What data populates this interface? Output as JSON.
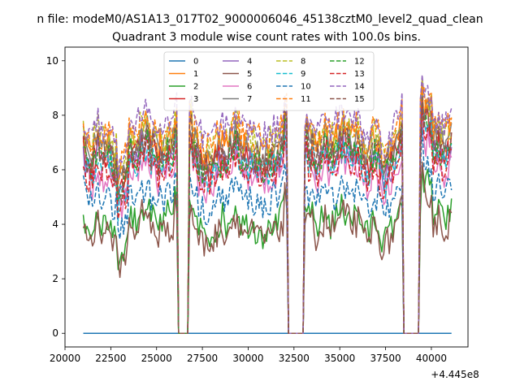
{
  "chart_data": {
    "type": "line",
    "suptitle": "n file: modeM0/AS1A13_017T02_9000006046_45138cztM0_level2_quad_clean",
    "title": "Quadrant 3 module wise count rates with 100.0s bins.",
    "xlabel": "",
    "ylabel": "",
    "x_offset_label": "+4.445e8",
    "xlim": [
      20000,
      42000
    ],
    "ylim": [
      -0.5,
      10.5
    ],
    "x_ticks": [
      20000,
      22500,
      25000,
      27500,
      30000,
      32500,
      35000,
      37500,
      40000
    ],
    "x_tick_labels": [
      "20000",
      "22500",
      "25000",
      "27500",
      "30000",
      "32500",
      "35000",
      "37500",
      "40000"
    ],
    "y_ticks": [
      0,
      2,
      4,
      6,
      8,
      10
    ],
    "y_tick_labels": [
      "0",
      "2",
      "4",
      "6",
      "8",
      "10"
    ],
    "x_range": [
      21000,
      41100
    ],
    "bin_seconds": 100,
    "gaps": [
      [
        26150,
        26750
      ],
      [
        32150,
        33050
      ],
      [
        38450,
        39350
      ]
    ],
    "spike": [
      [
        38060,
        38250,
        7.3
      ]
    ],
    "legend": {
      "placement": "top-center",
      "ncol": 4
    },
    "series": [
      {
        "name": "0",
        "color": "#1f77b4",
        "dash": false,
        "mean": 0.0,
        "zero": true
      },
      {
        "name": "1",
        "color": "#ff7f0e",
        "dash": false,
        "mean": 7.0
      },
      {
        "name": "2",
        "color": "#2ca02c",
        "dash": false,
        "mean": 4.1
      },
      {
        "name": "3",
        "color": "#d62728",
        "dash": false,
        "mean": 6.5
      },
      {
        "name": "4",
        "color": "#9467bd",
        "dash": false,
        "mean": 6.3
      },
      {
        "name": "5",
        "color": "#8c564b",
        "dash": false,
        "mean": 3.8
      },
      {
        "name": "6",
        "color": "#e377c2",
        "dash": false,
        "mean": 5.8
      },
      {
        "name": "7",
        "color": "#7f7f7f",
        "dash": false,
        "mean": 6.9
      },
      {
        "name": "8",
        "color": "#bcbd22",
        "dash": true,
        "mean": 7.2
      },
      {
        "name": "9",
        "color": "#17becf",
        "dash": true,
        "mean": 6.2
      },
      {
        "name": "10",
        "color": "#1f77b4",
        "dash": true,
        "mean": 5.0
      },
      {
        "name": "11",
        "color": "#ff7f0e",
        "dash": true,
        "mean": 7.4
      },
      {
        "name": "12",
        "color": "#2ca02c",
        "dash": true,
        "mean": 6.4
      },
      {
        "name": "13",
        "color": "#d62728",
        "dash": true,
        "mean": 6.0
      },
      {
        "name": "14",
        "color": "#9467bd",
        "dash": true,
        "mean": 7.6
      },
      {
        "name": "15",
        "color": "#8c564b",
        "dash": true,
        "mean": 6.6
      }
    ]
  }
}
